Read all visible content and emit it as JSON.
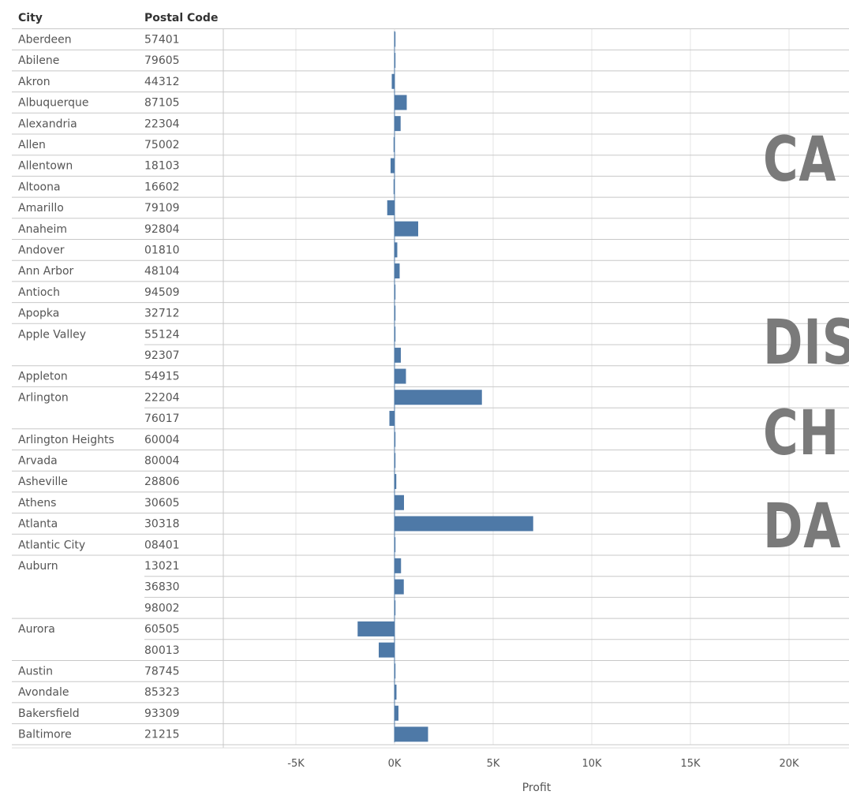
{
  "headers": {
    "city": "City",
    "postal_code": "Postal Code"
  },
  "overlay": {
    "line1": "CA",
    "line2": "DIS",
    "line3": "CH",
    "line4": "DA"
  },
  "colors": {
    "bar": "#4e79a7",
    "grid": "#e6e6e6",
    "rule": "#c8c8c8",
    "text": "#555555",
    "overlay": "#7a7a7a"
  },
  "chart_data": {
    "type": "bar",
    "orientation": "horizontal",
    "xlabel": "Profit",
    "xlim": [
      -9500,
      23000
    ],
    "ticks": [
      {
        "value": -5000,
        "label": "-5K"
      },
      {
        "value": 0,
        "label": "0K"
      },
      {
        "value": 5000,
        "label": "5K"
      },
      {
        "value": 10000,
        "label": "10K"
      },
      {
        "value": 15000,
        "label": "15K"
      },
      {
        "value": 20000,
        "label": "20K"
      }
    ],
    "grid": true,
    "rows": [
      {
        "city": "Aberdeen",
        "postal": "57401",
        "value": 10
      },
      {
        "city": "Abilene",
        "postal": "79605",
        "value": 2
      },
      {
        "city": "Akron",
        "postal": "44312",
        "value": -140
      },
      {
        "city": "Albuquerque",
        "postal": "87105",
        "value": 620
      },
      {
        "city": "Alexandria",
        "postal": "22304",
        "value": 310
      },
      {
        "city": "Allen",
        "postal": "75002",
        "value": -40
      },
      {
        "city": "Allentown",
        "postal": "18103",
        "value": -200
      },
      {
        "city": "Altoona",
        "postal": "16602",
        "value": -5
      },
      {
        "city": "Amarillo",
        "postal": "79109",
        "value": -370
      },
      {
        "city": "Anaheim",
        "postal": "92804",
        "value": 1200
      },
      {
        "city": "Andover",
        "postal": "01810",
        "value": 140
      },
      {
        "city": "Ann Arbor",
        "postal": "48104",
        "value": 260
      },
      {
        "city": "Antioch",
        "postal": "94509",
        "value": 10
      },
      {
        "city": "Apopka",
        "postal": "32712",
        "value": 30
      },
      {
        "city": "Apple Valley",
        "postal": "55124",
        "value": 10
      },
      {
        "city": "",
        "postal": "92307",
        "value": 320
      },
      {
        "city": "Appleton",
        "postal": "54915",
        "value": 580
      },
      {
        "city": "Arlington",
        "postal": "22204",
        "value": 4430
      },
      {
        "city": "",
        "postal": "76017",
        "value": -260
      },
      {
        "city": "Arlington Heights",
        "postal": "60004",
        "value": 10
      },
      {
        "city": "Arvada",
        "postal": "80004",
        "value": 15
      },
      {
        "city": "Asheville",
        "postal": "28806",
        "value": 90
      },
      {
        "city": "Athens",
        "postal": "30605",
        "value": 480
      },
      {
        "city": "Atlanta",
        "postal": "30318",
        "value": 7030
      },
      {
        "city": "Atlantic City",
        "postal": "08401",
        "value": 25
      },
      {
        "city": "Auburn",
        "postal": "13021",
        "value": 330
      },
      {
        "city": "",
        "postal": "36830",
        "value": 470
      },
      {
        "city": "",
        "postal": "98002",
        "value": 20
      },
      {
        "city": "Aurora",
        "postal": "60505",
        "value": -1870
      },
      {
        "city": "",
        "postal": "80013",
        "value": -800
      },
      {
        "city": "Austin",
        "postal": "78745",
        "value": 20
      },
      {
        "city": "Avondale",
        "postal": "85323",
        "value": 100
      },
      {
        "city": "Bakersfield",
        "postal": "93309",
        "value": 200
      },
      {
        "city": "Baltimore",
        "postal": "21215",
        "value": 1700
      }
    ]
  }
}
